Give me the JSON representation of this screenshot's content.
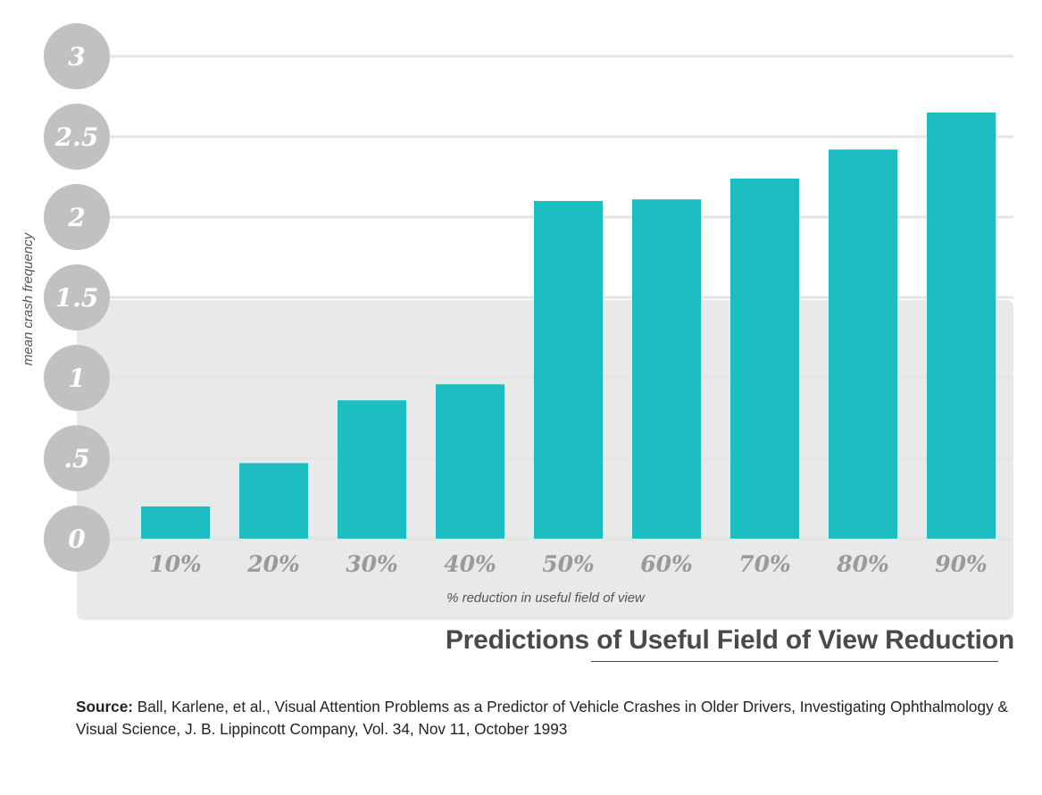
{
  "chart_data": {
    "type": "bar",
    "title": "Predictions of Useful Field of View Reduction",
    "xlabel": "% reduction in useful field of view",
    "ylabel": "mean crash frequency",
    "categories": [
      "10%",
      "20%",
      "30%",
      "40%",
      "50%",
      "60%",
      "70%",
      "80%",
      "90%"
    ],
    "values": [
      0.2,
      0.47,
      0.86,
      0.96,
      2.1,
      2.11,
      2.24,
      2.42,
      2.65
    ],
    "ylim": [
      0,
      3
    ],
    "yticks": [
      0,
      0.5,
      1,
      1.5,
      2,
      2.5,
      3
    ],
    "ytick_labels": [
      "0",
      ".5",
      "1",
      "1.5",
      "2",
      "2.5",
      "3"
    ],
    "grid": true,
    "colors": {
      "bar": "#1dbec2",
      "grid": "#e4e4e4",
      "panel": "#e8e9e9",
      "tick_circle": "#c1c1c1",
      "tick_text": "#ffffff",
      "xtick_text": "#9a9a9a",
      "title": "#4a4a4a"
    }
  },
  "source": {
    "label": "Source:",
    "text": "Ball, Karlene, et al., Visual Attention Problems as a Predictor of Vehicle Crashes in Older Drivers, Investigating Ophthalmology & Visual Science, J. B. Lippincott Company, Vol. 34, Nov 11, October 1993"
  }
}
